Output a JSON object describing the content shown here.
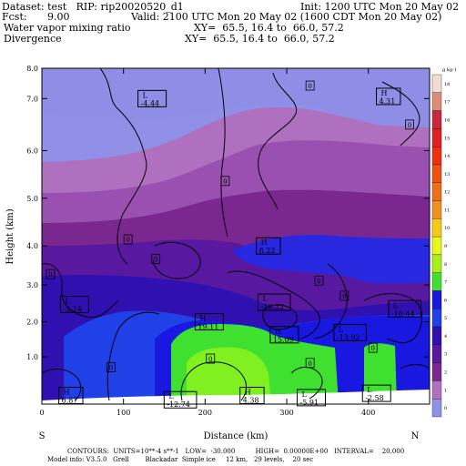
{
  "header": {
    "dataset": "Dataset: test   RIP: rip20020520_d1",
    "init": "Init: 1200 UTC Mon 20 May 02",
    "fcst_label": "Fcst:",
    "fcst_value": "9.00",
    "valid": "Valid: 2100 UTC Mon 20 May 02 (1600 CDT Mon 20 May 02)",
    "field1": "Water vapor mixing ratio",
    "xy1": "XY=  65.5, 16.4 to  66.0, 57.2",
    "field2": "Divergence",
    "xy2": "XY=  65.5, 16.4 to  66.0, 57.2"
  },
  "footer": {
    "contours": "CONTOURS:  UNITS=10**-4 s**-1   LOW=  -30.000          HIGH=  0.00000E+00   INTERVAL=    20.000",
    "model": "Model info: V3.5.0   Grell        Blackadar  Simple ice     12 km,   29 levels,    20 sec"
  },
  "chart_data": {
    "type": "heatmap",
    "xlabel": "Distance (km)",
    "ylabel": "Height (km)",
    "xlim": [
      0,
      475
    ],
    "ylim": [
      0.25,
      8.0
    ],
    "x_ticks": [
      "0",
      "100",
      "200",
      "300",
      "400"
    ],
    "x_tick_values": [
      0,
      100,
      200,
      300,
      400
    ],
    "y_ticks": [
      "1.0",
      "2.0",
      "3.0",
      "4.0",
      "5.0",
      "6.0",
      "7.0",
      "8.0"
    ],
    "y_tick_values": [
      1.34,
      2.15,
      3.0,
      3.9,
      5.0,
      6.1,
      7.3,
      8.0
    ],
    "left_end": "S",
    "right_end": "N",
    "colorbar": {
      "units": "g kg-1",
      "labels": [
        "18",
        "17",
        "16",
        "15",
        "14",
        "13",
        "12",
        "11",
        "10",
        "9",
        "8",
        "7",
        "6",
        "5",
        "4",
        "3",
        "2",
        "1",
        "0"
      ],
      "colors": [
        "#f0dcd0",
        "#dc8c78",
        "#c8283c",
        "#e02020",
        "#f03010",
        "#f05010",
        "#f07018",
        "#f09020",
        "#f8c818",
        "#e8f818",
        "#a8f018",
        "#40e030",
        "#1818e0",
        "#2040e8",
        "#3010b0",
        "#5818a0",
        "#7a2890",
        "#b070c0",
        "#9090e8"
      ]
    },
    "maxima_minima": [
      {
        "type": "L",
        "value": "-4.44",
        "x": 120,
        "y": 7.3
      },
      {
        "type": "H",
        "value": "4.31",
        "x": 412,
        "y": 7.35
      },
      {
        "type": "H",
        "value": "8.22",
        "x": 265,
        "y": 3.9
      },
      {
        "type": "L",
        "value": "-3.14",
        "x": 25,
        "y": 2.55
      },
      {
        "type": "L",
        "value": "-29.22",
        "x": 267,
        "y": 2.6
      },
      {
        "type": "L",
        "value": "-10.44",
        "x": 427,
        "y": 2.45
      },
      {
        "type": "H",
        "value": "19.11",
        "x": 190,
        "y": 2.15
      },
      {
        "type": "H",
        "value": "15.09",
        "x": 282,
        "y": 1.85
      },
      {
        "type": "L",
        "value": "-13.92",
        "x": 360,
        "y": 1.9
      },
      {
        "type": "H",
        "value": "6.87",
        "x": 23,
        "y": 0.45
      },
      {
        "type": "L",
        "value": "-12.74",
        "x": 152,
        "y": 0.35
      },
      {
        "type": "H",
        "value": "4.38",
        "x": 245,
        "y": 0.45
      },
      {
        "type": "L",
        "value": "-5.91",
        "x": 315,
        "y": 0.4
      },
      {
        "type": "L",
        "value": "-2.58",
        "x": 395,
        "y": 0.5
      }
    ],
    "zero_labels": [
      {
        "value": "0",
        "x": 328,
        "y": 7.6
      },
      {
        "value": "0",
        "x": 450,
        "y": 6.7
      },
      {
        "value": "0",
        "x": 224,
        "y": 5.4
      },
      {
        "value": "0",
        "x": 105,
        "y": 4.05
      },
      {
        "value": "0",
        "x": 139,
        "y": 3.6
      },
      {
        "value": "0",
        "x": 10,
        "y": 3.25
      },
      {
        "value": "0",
        "x": 339,
        "y": 3.1
      },
      {
        "value": "0",
        "x": 370,
        "y": 2.75
      },
      {
        "value": "0",
        "x": 84,
        "y": 1.1
      },
      {
        "value": "0",
        "x": 206,
        "y": 1.3
      },
      {
        "value": "0",
        "x": 328,
        "y": 1.2
      },
      {
        "value": "0",
        "x": 405,
        "y": 1.55
      }
    ]
  }
}
